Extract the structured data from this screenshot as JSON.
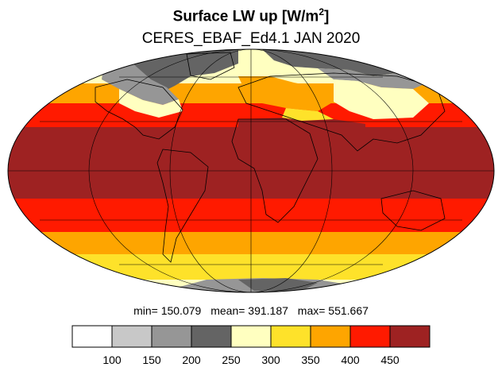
{
  "title": "Surface LW up [W/m",
  "title_sup": "2",
  "title_close": "]",
  "subtitle": "CERES_EBAF_Ed4.1 JAN 2020",
  "stats": {
    "min": "min= 150.079",
    "mean": "mean= 391.187",
    "max": "max= 551.667"
  },
  "map": {
    "projection": "mollweide",
    "variable": "Surface LW up",
    "units": "W/m2",
    "colors": {
      "c100": "#ffffff",
      "c150": "#c8c8c8",
      "c200": "#969696",
      "c250": "#646464",
      "c300": "#ffffc0",
      "c350": "#fee22a",
      "c400": "#fea500",
      "c450": "#ff1a00",
      "c500": "#9e2222",
      "coast": "#000000",
      "grid": "#000000"
    }
  },
  "legend": {
    "colors": [
      "#ffffff",
      "#c8c8c8",
      "#969696",
      "#646464",
      "#ffffc0",
      "#fee22a",
      "#fea500",
      "#ff1a00",
      "#9e2222"
    ],
    "labels": [
      "100",
      "150",
      "200",
      "250",
      "300",
      "350",
      "400",
      "450"
    ]
  }
}
